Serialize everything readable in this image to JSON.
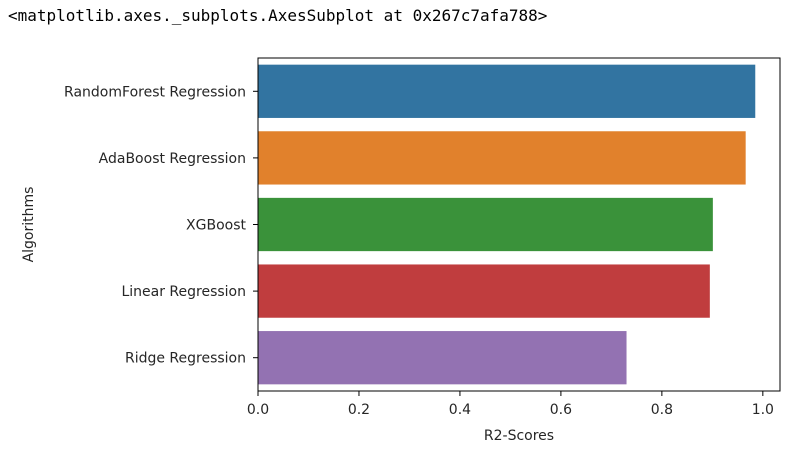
{
  "output_repr": "<matplotlib.axes._subplots.AxesSubplot at 0x267c7afa788>",
  "chart_data": {
    "type": "bar",
    "orientation": "horizontal",
    "categories": [
      "RandomForest Regression",
      "AdaBoost Regression",
      "XGBoost",
      "Linear Regression",
      "Ridge Regression"
    ],
    "values": [
      0.985,
      0.966,
      0.901,
      0.895,
      0.73
    ],
    "colors": [
      "#3274a1",
      "#e1812c",
      "#3a923a",
      "#c03d3e",
      "#9372b2"
    ],
    "xlabel": "R2-Scores",
    "ylabel": "Algorithms",
    "xlim": [
      0,
      1.034
    ],
    "xticks": [
      0.0,
      0.2,
      0.4,
      0.6,
      0.8,
      1.0
    ],
    "xtick_labels": [
      "0.0",
      "0.2",
      "0.4",
      "0.6",
      "0.8",
      "1.0"
    ],
    "grid": false
  }
}
